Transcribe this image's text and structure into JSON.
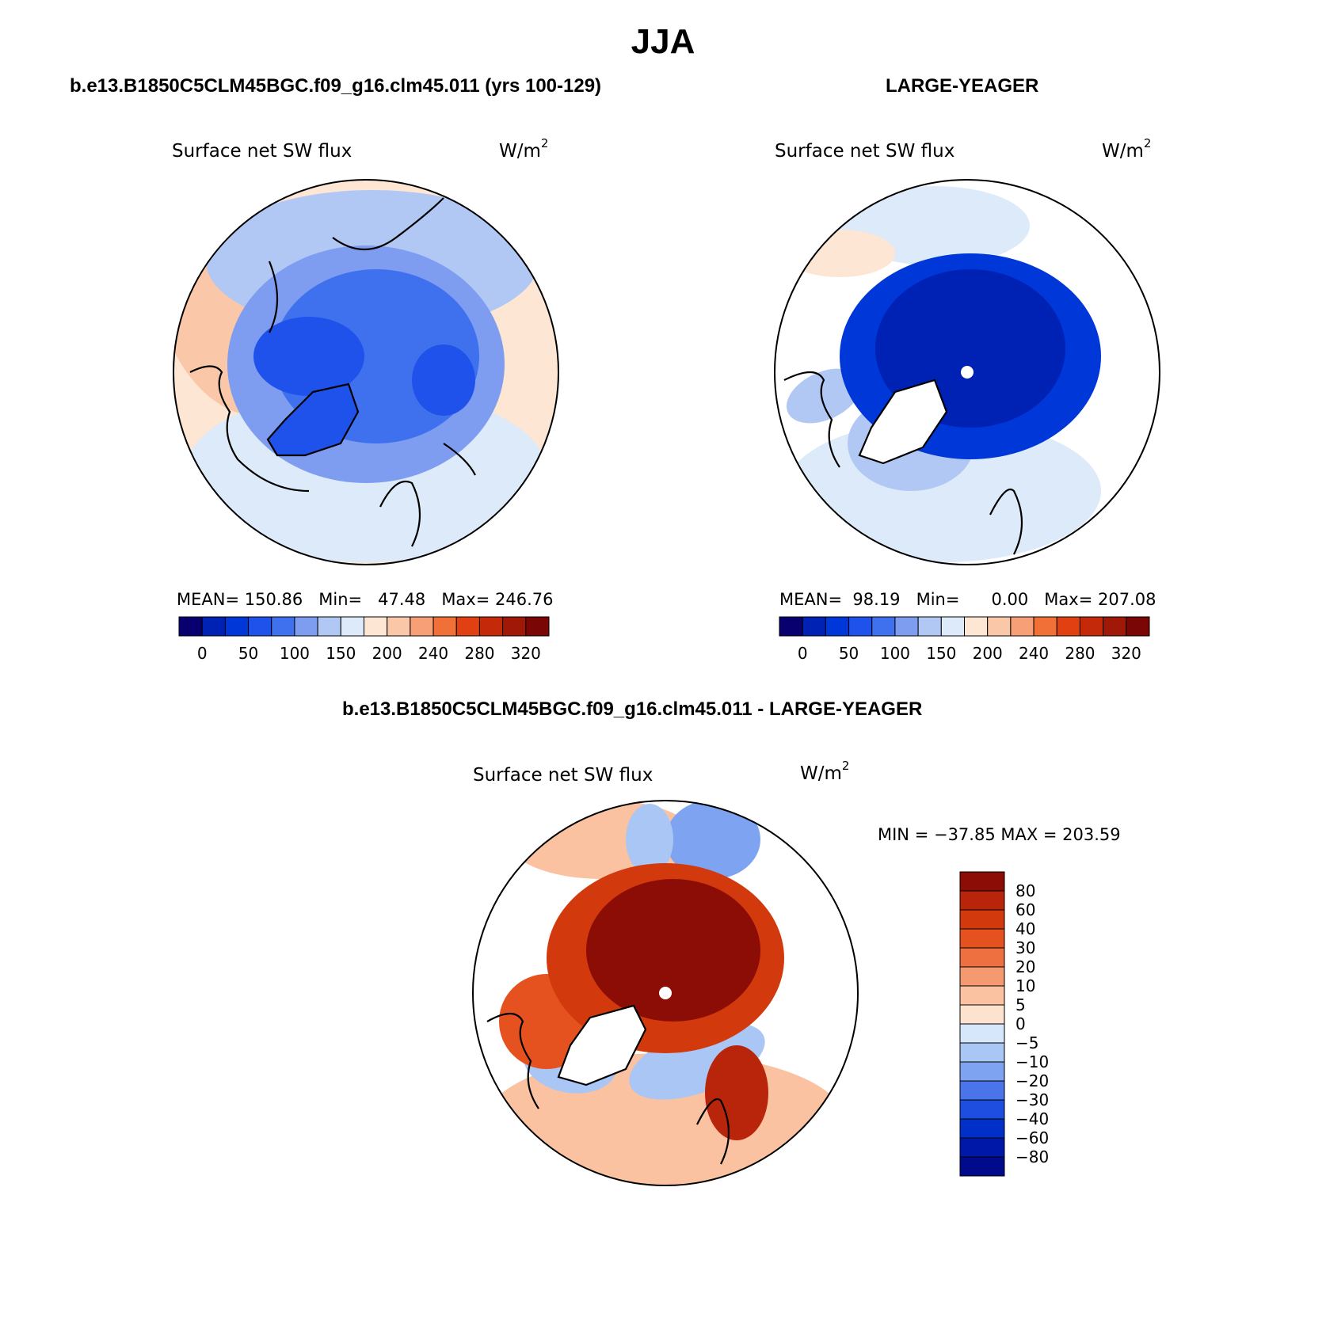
{
  "page": {
    "title": "JJA",
    "colors": {
      "abs_scale": [
        "#08006e",
        "#0022b4",
        "#0037d9",
        "#1f52ea",
        "#3f70ee",
        "#7e9df0",
        "#b2c8f4",
        "#dceaf9",
        "#fde6d4",
        "#fbc7a9",
        "#f7a078",
        "#f07038",
        "#e04012",
        "#c42a0a",
        "#a01908",
        "#7a0606"
      ],
      "diff_scale": [
        "#000a8a",
        "#0018a8",
        "#0030c8",
        "#1e4ee0",
        "#4a74ea",
        "#7ea3f0",
        "#aac6f5",
        "#d6e6fb",
        "#fde3cf",
        "#fbc2a2",
        "#f59a70",
        "#ee7040",
        "#e5521f",
        "#d23a0e",
        "#b8250a",
        "#8c0d05"
      ]
    }
  },
  "chart_data": [
    {
      "type": "heatmap",
      "subtype": "polar-stereographic-map",
      "panel_title": "b.e13.B1850C5CLM45BGC.f09_g16.clm45.011 (yrs 100-129)",
      "variable_label": "Surface net SW flux",
      "units": "W/m",
      "units_sup": "2",
      "stats_text": {
        "mean_label": "MEAN=",
        "mean": "150.86",
        "min_label": "Min=",
        "min": "47.48",
        "max_label": "Max=",
        "max": "246.76"
      },
      "mean": 150.86,
      "min": 47.48,
      "max": 246.76,
      "colorbar_ticks": [
        "0",
        "50",
        "100",
        "150",
        "200",
        "240",
        "280",
        "320"
      ]
    },
    {
      "type": "heatmap",
      "subtype": "polar-stereographic-map",
      "panel_title": "LARGE-YEAGER",
      "variable_label": "Surface net SW flux",
      "units": "W/m",
      "units_sup": "2",
      "stats_text": {
        "mean_label": "MEAN=",
        "mean": "98.19",
        "min_label": "Min=",
        "min": "0.00",
        "max_label": "Max=",
        "max": "207.08"
      },
      "mean": 98.19,
      "min": 0.0,
      "max": 207.08,
      "colorbar_ticks": [
        "0",
        "50",
        "100",
        "150",
        "200",
        "240",
        "280",
        "320"
      ]
    },
    {
      "type": "heatmap",
      "subtype": "polar-stereographic-difference-map",
      "panel_title": "b.e13.B1850C5CLM45BGC.f09_g16.clm45.011 - LARGE-YEAGER",
      "variable_label": "Surface net SW flux",
      "units": "W/m",
      "units_sup": "2",
      "minmax_text": "MIN = −37.85 MAX = 203.59",
      "min": -37.85,
      "max": 203.59,
      "colorbar_ticks": [
        "80",
        "60",
        "40",
        "30",
        "20",
        "10",
        "5",
        "0",
        "−5",
        "−10",
        "−20",
        "−30",
        "−40",
        "−60",
        "−80"
      ]
    }
  ]
}
